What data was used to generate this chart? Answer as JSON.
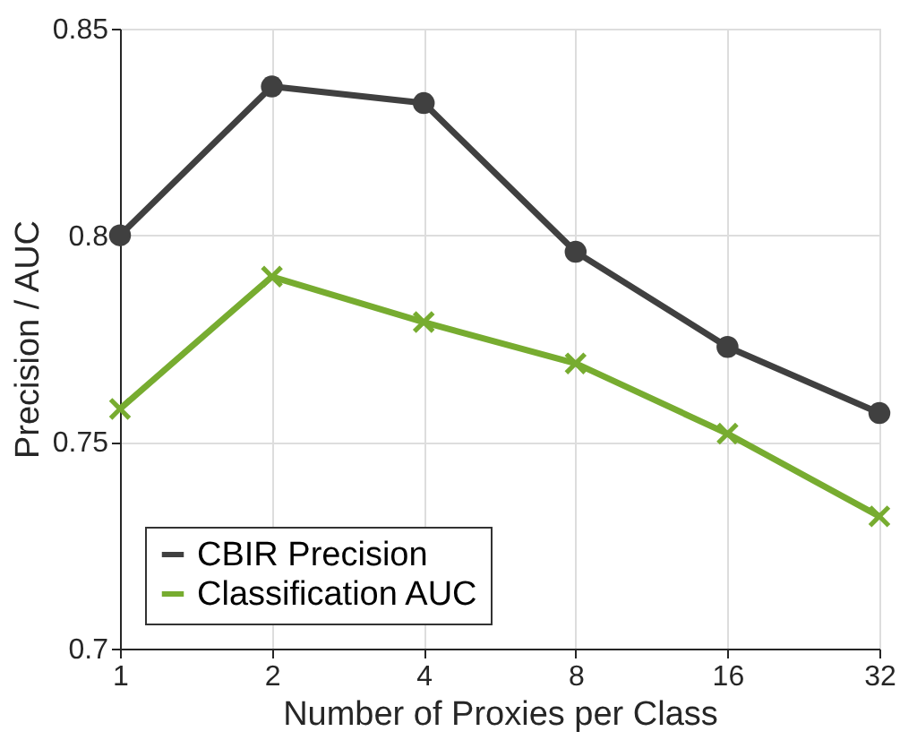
{
  "chart_data": {
    "type": "line",
    "xlabel": "Number of Proxies per Class",
    "ylabel": "Precision / AUC",
    "x": [
      1,
      2,
      4,
      8,
      16,
      32
    ],
    "log": "x",
    "xlim": [
      1,
      32
    ],
    "xticks": [
      1,
      2,
      4,
      8,
      16,
      32
    ],
    "ylim": [
      0.7,
      0.85
    ],
    "yticks": [
      0.7,
      0.75,
      0.8,
      0.85
    ],
    "grid": true,
    "legend": "bottom left",
    "line_style": "solid",
    "series": [
      {
        "name": "CBIR Precision",
        "color": "#404040",
        "marker": "circle",
        "values": [
          0.8,
          0.836,
          0.832,
          0.796,
          0.773,
          0.757
        ]
      },
      {
        "name": "Classification AUC",
        "color": "#77ac30",
        "marker": "cross",
        "values": [
          0.758,
          0.79,
          0.779,
          0.769,
          0.752,
          0.732
        ]
      }
    ]
  }
}
